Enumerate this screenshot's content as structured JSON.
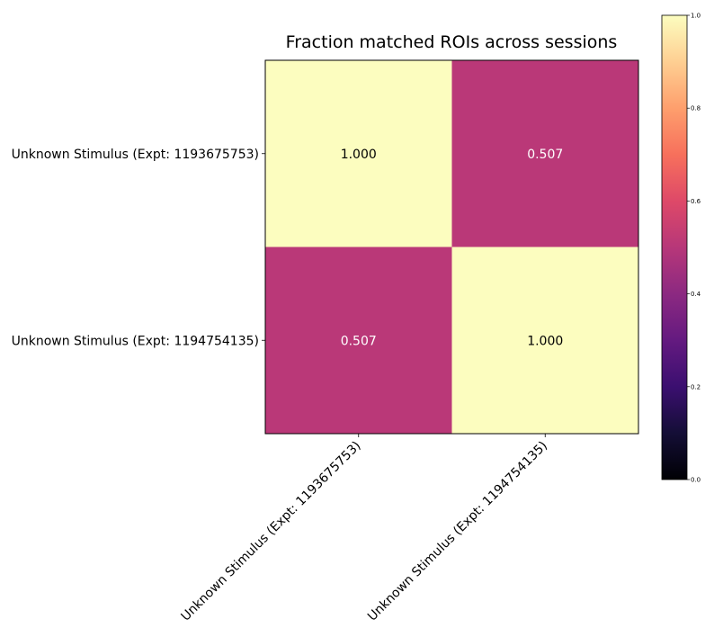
{
  "chart_data": {
    "type": "heatmap",
    "title": "Fraction matched ROIs across sessions",
    "xlabel": "",
    "ylabel": "",
    "x_categories": [
      "Unknown Stimulus (Expt: 1193675753)",
      "Unknown Stimulus (Expt: 1194754135)"
    ],
    "y_categories": [
      "Unknown Stimulus (Expt: 1193675753)",
      "Unknown Stimulus (Expt: 1194754135)"
    ],
    "values": [
      [
        1.0,
        0.507
      ],
      [
        0.507,
        1.0
      ]
    ],
    "cell_labels": [
      [
        "1.000",
        "0.507"
      ],
      [
        "0.507",
        "1.000"
      ]
    ],
    "colormap": "magma",
    "color_range": [
      0.0,
      1.0
    ],
    "colorbar_ticks": [
      0.0,
      0.2,
      0.4,
      0.6,
      0.8,
      1.0
    ],
    "colorbar_tick_labels": [
      "0.0",
      "0.2",
      "0.4",
      "0.6",
      "0.8",
      "1.0"
    ],
    "colors": {
      "high": "#fbfcbf",
      "mid": "#b73779",
      "label_dark": "#000000",
      "label_light": "#ffffff"
    }
  }
}
